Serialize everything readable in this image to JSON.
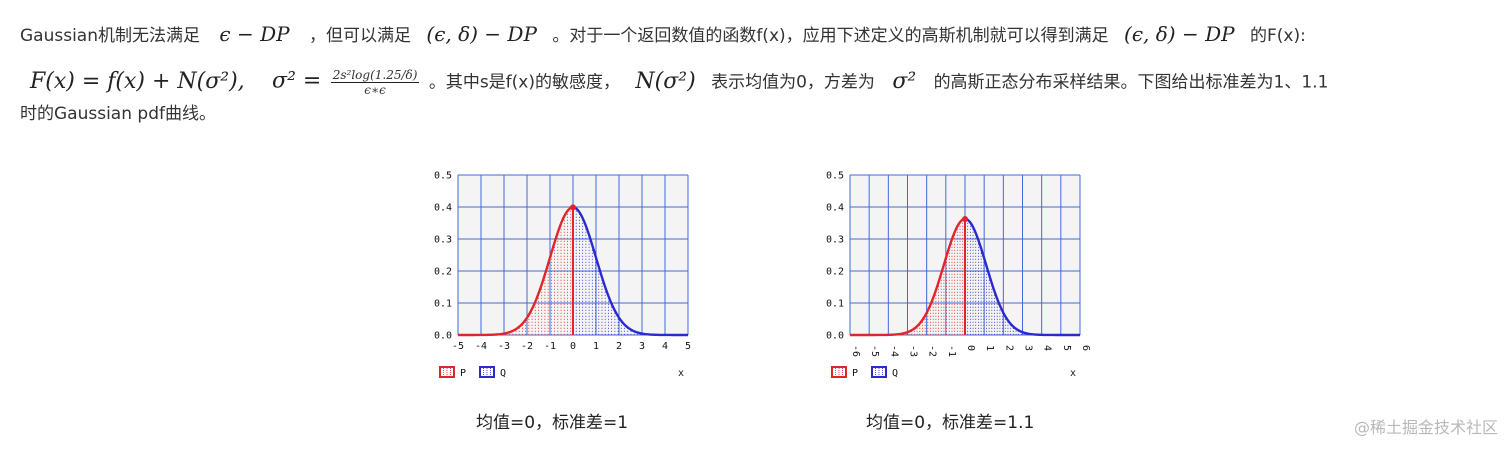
{
  "text": {
    "line1": {
      "p1": "Gaussian机制无法满足",
      "m1": "ϵ − DP",
      "p2": "，但可以满足",
      "m2": "(ϵ, δ) − DP",
      "p3": "。对于一个返回数值的函数f(x)，应用下述定义的高斯机制就可以得到满足",
      "m3": "(ϵ, δ) − DP",
      "p4": "的F(x):"
    },
    "line2": {
      "m1": "F(x) = f(x) + N(σ²),",
      "m2": "σ² =",
      "frac_num": "2s²log(1.25/δ)",
      "frac_den": "ϵ∗ϵ",
      "p1": "。其中s是f(x)的敏感度，",
      "m3": "N(σ²)",
      "p2": "表示均值为0，方差为",
      "m4": "σ²",
      "p3": "的高斯正态分布采样结果。下图给出标准差为1、1.1"
    },
    "line3": "时的Gaussian pdf曲线。"
  },
  "figures": [
    {
      "caption": "均值=0，标准差=1",
      "legend": {
        "p_label": "P",
        "q_label": "Q",
        "x_label": "x"
      },
      "chart_data": {
        "type": "line",
        "x_ticks": [
          "-5",
          "-4",
          "-3",
          "-2",
          "-1",
          "0",
          "1",
          "2",
          "3",
          "4",
          "5"
        ],
        "y_ticks": [
          "0.0",
          "0.1",
          "0.2",
          "0.3",
          "0.4",
          "0.5"
        ],
        "xlim": [
          -5,
          5
        ],
        "ylim": [
          0,
          0.5
        ],
        "sigma": 1,
        "mean": 0,
        "series": [
          {
            "name": "P",
            "color": "#e0262b",
            "x_from": -5,
            "x_to": 0
          },
          {
            "name": "Q",
            "color": "#2a2ad0",
            "x_from": 0,
            "x_to": 5
          }
        ],
        "x_tick_rotated": false
      }
    },
    {
      "caption": "均值=0，标准差=1.1",
      "legend": {
        "p_label": "P",
        "q_label": "Q",
        "x_label": "x"
      },
      "chart_data": {
        "type": "line",
        "x_ticks": [
          "-6",
          "-5",
          "-4",
          "-3",
          "-2",
          "-1",
          "0",
          "1",
          "2",
          "3",
          "4",
          "5",
          "6"
        ],
        "y_ticks": [
          "0.0",
          "0.1",
          "0.2",
          "0.3",
          "0.4",
          "0.5"
        ],
        "xlim": [
          -6,
          6
        ],
        "ylim": [
          0,
          0.5
        ],
        "sigma": 1.1,
        "mean": 0,
        "series": [
          {
            "name": "P",
            "color": "#e0262b",
            "x_from": -6,
            "x_to": 0
          },
          {
            "name": "Q",
            "color": "#2a2ad0",
            "x_from": 0,
            "x_to": 6
          }
        ],
        "x_tick_rotated": true
      }
    }
  ],
  "watermark": "@稀土掘金技术社区",
  "colors": {
    "grid": "#3f6ad8",
    "plot_bg": "#f4f4f4",
    "p": "#e0262b",
    "q": "#2a2ad0"
  }
}
